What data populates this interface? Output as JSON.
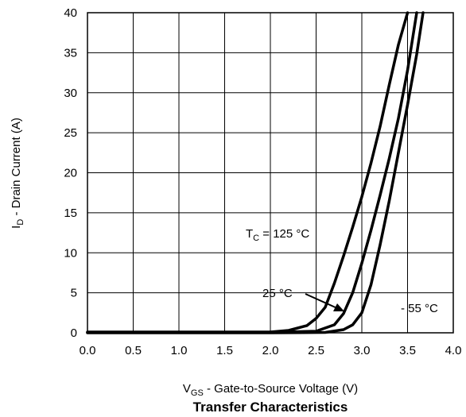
{
  "chart_data": {
    "type": "line",
    "title": "Transfer Characteristics",
    "xlabel": {
      "main": "V",
      "sub": "GS",
      "rest": " - Gate-to-Source Voltage (V)"
    },
    "ylabel": {
      "main": "I",
      "sub": "D",
      "rest": " - Drain Current (A)"
    },
    "xlim": [
      0,
      4
    ],
    "ylim": [
      0,
      40
    ],
    "grid": true,
    "xticks": [
      {
        "v": 0,
        "label": "0.0"
      },
      {
        "v": 0.5,
        "label": "0.5"
      },
      {
        "v": 1,
        "label": "1.0"
      },
      {
        "v": 1.5,
        "label": "1.5"
      },
      {
        "v": 2,
        "label": "2.0"
      },
      {
        "v": 2.5,
        "label": "2.5"
      },
      {
        "v": 3,
        "label": "3.0"
      },
      {
        "v": 3.5,
        "label": "3.5"
      },
      {
        "v": 4,
        "label": "4.0"
      }
    ],
    "yticks": [
      {
        "v": 0,
        "label": "0"
      },
      {
        "v": 5,
        "label": "5"
      },
      {
        "v": 10,
        "label": "10"
      },
      {
        "v": 15,
        "label": "15"
      },
      {
        "v": 20,
        "label": "20"
      },
      {
        "v": 25,
        "label": "25"
      },
      {
        "v": 30,
        "label": "30"
      },
      {
        "v": 35,
        "label": "35"
      },
      {
        "v": 40,
        "label": "40"
      }
    ],
    "series": [
      {
        "x": [
          0,
          1.0,
          1.5,
          2.0,
          2.2,
          2.4,
          2.5,
          2.6,
          2.7,
          2.8,
          2.9,
          3.0,
          3.1,
          3.2,
          3.3,
          3.4,
          3.5
        ],
        "y": [
          0.1,
          0.1,
          0.1,
          0.1,
          0.3,
          0.9,
          1.8,
          3.2,
          6.2,
          9.6,
          13.2,
          17.0,
          21.2,
          25.8,
          31.0,
          36.0,
          40.0
        ]
      },
      {
        "x": [
          0,
          2.0,
          2.5,
          2.7,
          2.8,
          2.9,
          3.0,
          3.1,
          3.2,
          3.3,
          3.4,
          3.5,
          3.6
        ],
        "y": [
          0.05,
          0.05,
          0.2,
          1.0,
          2.4,
          5.0,
          8.7,
          12.8,
          17.2,
          21.8,
          26.8,
          32.8,
          40.0
        ]
      },
      {
        "x": [
          0,
          2.0,
          2.6,
          2.8,
          2.9,
          3.0,
          3.1,
          3.2,
          3.3,
          3.4,
          3.5,
          3.6,
          3.67
        ],
        "y": [
          0,
          0,
          0.05,
          0.4,
          1.0,
          2.5,
          6.0,
          11.0,
          16.5,
          22.5,
          28.5,
          34.8,
          40.0
        ]
      }
    ],
    "annotations": {
      "tc125": {
        "main": "T",
        "sub": "C",
        "rest": " = 125 °C"
      },
      "t25": "25 °C",
      "tm55": "- 55 °C"
    }
  }
}
